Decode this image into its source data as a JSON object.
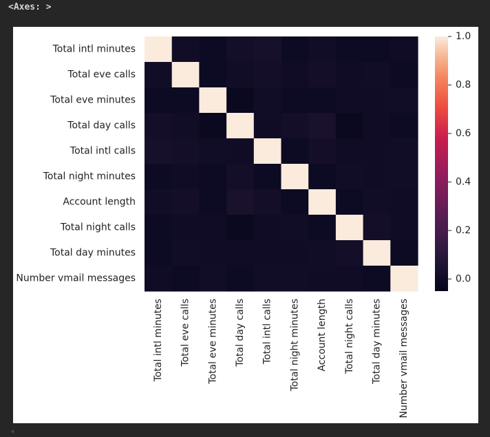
{
  "cell_output": {
    "repr_text": "<Axes: >"
  },
  "chart_data": {
    "type": "heatmap",
    "colormap": "rocket",
    "labels": [
      "Total intl minutes",
      "Total eve calls",
      "Total eve minutes",
      "Total day calls",
      "Total intl calls",
      "Total night minutes",
      "Account length",
      "Total night calls",
      "Total day minutes",
      "Number vmail messages"
    ],
    "matrix": [
      [
        1.0,
        0.01,
        -0.01,
        0.02,
        0.03,
        -0.01,
        0.01,
        -0.01,
        -0.01,
        0.0
      ],
      [
        0.01,
        1.0,
        -0.01,
        0.01,
        0.02,
        0.0,
        0.02,
        0.0,
        0.01,
        -0.01
      ],
      [
        -0.01,
        -0.01,
        1.0,
        -0.02,
        0.01,
        -0.01,
        -0.01,
        0.0,
        0.0,
        0.01
      ],
      [
        0.02,
        0.01,
        -0.02,
        1.0,
        0.0,
        0.02,
        0.04,
        -0.02,
        0.0,
        -0.01
      ],
      [
        0.03,
        0.02,
        0.01,
        0.0,
        1.0,
        -0.01,
        0.02,
        0.0,
        0.0,
        0.01
      ],
      [
        -0.01,
        0.0,
        -0.01,
        0.02,
        -0.01,
        1.0,
        -0.01,
        0.01,
        0.0,
        0.01
      ],
      [
        0.01,
        0.02,
        -0.01,
        0.04,
        0.02,
        -0.01,
        1.0,
        -0.01,
        0.01,
        0.0
      ],
      [
        -0.01,
        0.0,
        0.0,
        -0.02,
        0.0,
        0.01,
        -0.01,
        1.0,
        0.02,
        0.0
      ],
      [
        -0.01,
        0.01,
        0.0,
        0.0,
        0.0,
        0.0,
        0.01,
        0.02,
        1.0,
        -0.01
      ],
      [
        0.0,
        -0.01,
        0.01,
        -0.01,
        0.01,
        0.01,
        0.0,
        0.0,
        -0.01,
        1.0
      ]
    ],
    "colorbar": {
      "range": [
        -0.05,
        1.0
      ],
      "ticks": [
        0.0,
        0.2,
        0.4,
        0.6,
        0.8,
        1.0
      ],
      "tick_labels": [
        "0.0",
        "0.2",
        "0.4",
        "0.6",
        "0.8",
        "1.0"
      ]
    }
  }
}
